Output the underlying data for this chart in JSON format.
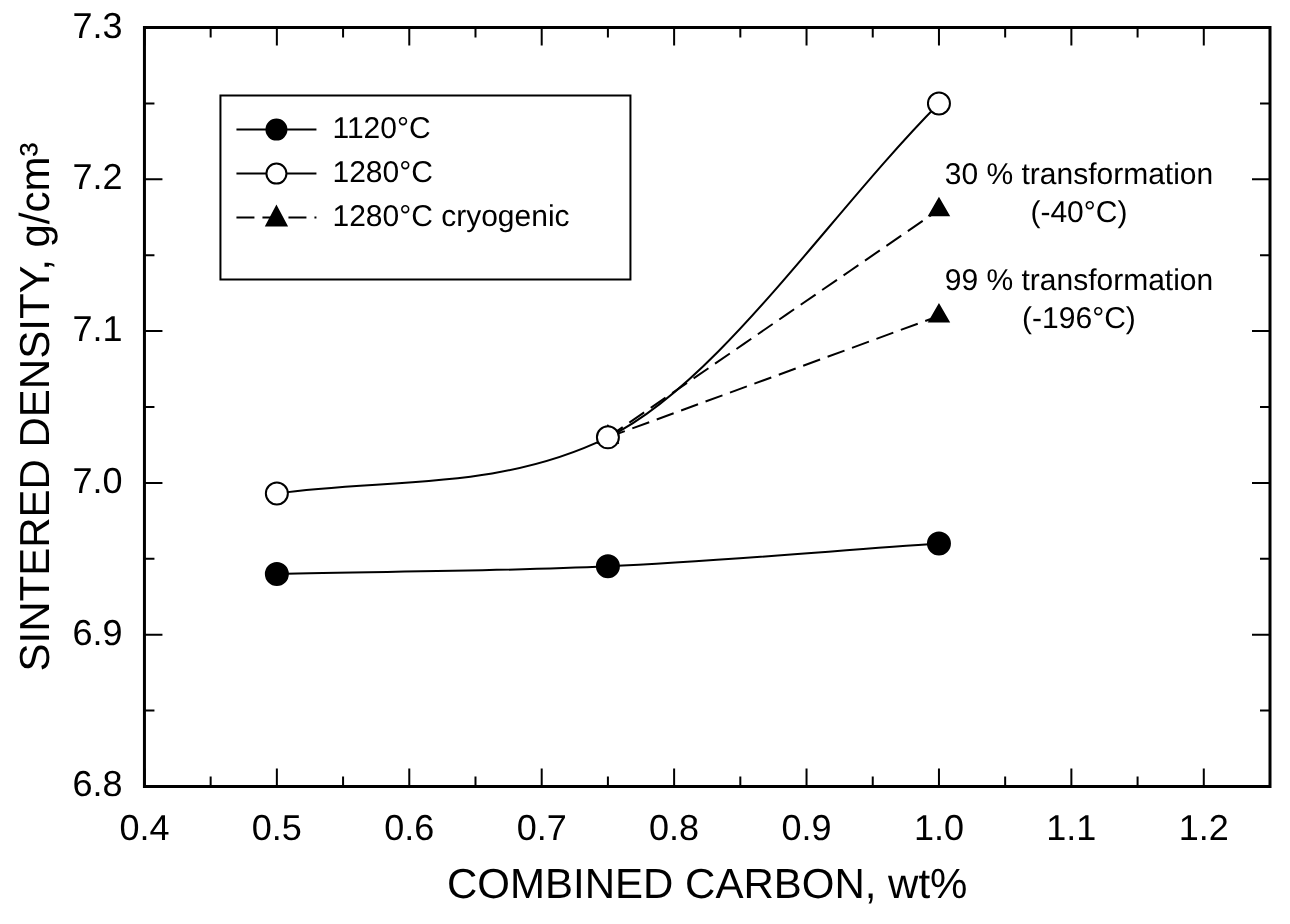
{
  "chart_data": {
    "type": "line",
    "xlabel": "COMBINED CARBON, wt%",
    "ylabel": "SINTERED DENSITY, g/cm³",
    "xlim": [
      0.4,
      1.25
    ],
    "ylim": [
      6.8,
      7.3
    ],
    "xticks": [
      0.4,
      {
        "value": 0.45,
        "label": null
      },
      0.5,
      {
        "value": 0.55,
        "label": null
      },
      0.6,
      {
        "value": 0.65,
        "label": null
      },
      0.7,
      {
        "value": 0.75,
        "label": null
      },
      0.8,
      {
        "value": 0.85,
        "label": null
      },
      0.9,
      {
        "value": 0.95,
        "label": null
      },
      {
        "value": 1.0,
        "label": "1.0"
      },
      {
        "value": 1.05,
        "label": null
      },
      1.1,
      {
        "value": 1.15,
        "label": null
      },
      1.2
    ],
    "yticks": [
      6.8,
      {
        "value": 6.85,
        "label": null
      },
      6.9,
      {
        "value": 6.95,
        "label": null
      },
      {
        "value": 7.0,
        "label": "7.0"
      },
      {
        "value": 7.05,
        "label": null
      },
      7.1,
      {
        "value": 7.15,
        "label": null
      },
      7.2,
      {
        "value": 7.25,
        "label": null
      },
      7.3
    ],
    "grid": false,
    "legend": "top left",
    "series": [
      {
        "name": "1120°C",
        "color": "#000000",
        "x": [
          0.5,
          0.75,
          1.0
        ],
        "values": [
          6.94,
          6.945,
          6.96
        ],
        "marker": "circle",
        "line_style": "solid"
      },
      {
        "name": "1280°C",
        "color": "#000000",
        "x": [
          0.5,
          0.75,
          1.0
        ],
        "values": [
          6.993,
          7.03,
          7.25
        ],
        "marker": "circle",
        "line_style": "solid"
      },
      {
        "name": "1280°C cryogenic",
        "color": "#000000",
        "x": [
          0.75,
          1.0
        ],
        "values": [
          7.03,
          7.18
        ],
        "marker": "triangle",
        "line_style": "dashed"
      },
      {
        "color": "#000000",
        "x": [
          0.75,
          1.0
        ],
        "values": [
          7.03,
          7.11
        ],
        "marker": "triangle",
        "line_style": "dashed"
      }
    ],
    "annotations": [
      {
        "text": "30 % transformation\n(-40°C)",
        "x": 1.0,
        "y": 7.18
      },
      {
        "text": "99 % transformation\n(-196°C)",
        "x": 1.0,
        "y": 7.11
      }
    ]
  }
}
